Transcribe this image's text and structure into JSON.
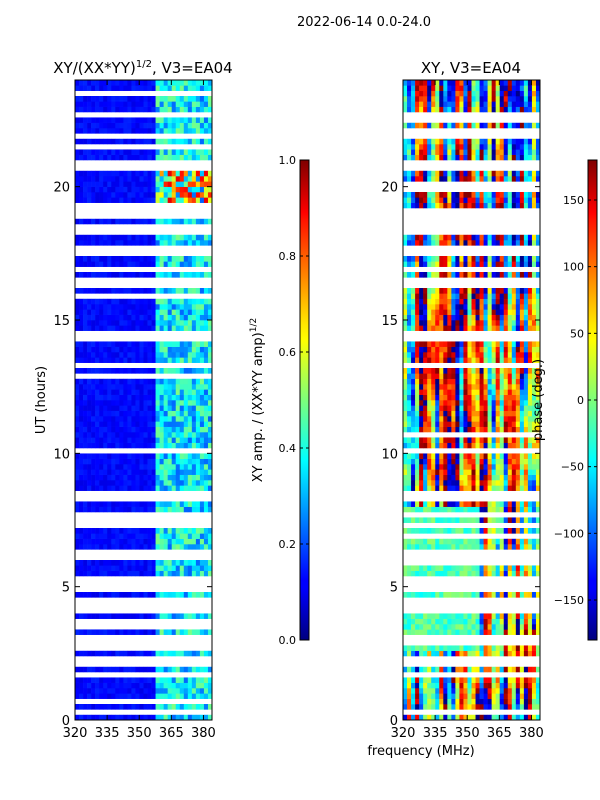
{
  "figure_title": "2022-06-14 0.0-24.0",
  "x_label_shared": "frequency (MHz)",
  "chart_data": [
    {
      "type": "heatmap",
      "title": "XY/(XX*YY)^{1/2}, V3=EA04",
      "title_main": "XY/(XX*YY)",
      "title_sup": "1/2",
      "title_tail": ", V3=EA04",
      "xlabel": "frequency (MHz)",
      "ylabel": "UT (hours)",
      "xlim": [
        320,
        384
      ],
      "ylim": [
        0,
        24
      ],
      "xticks": [
        320,
        335,
        350,
        365,
        380
      ],
      "yticks": [
        0,
        5,
        10,
        15,
        20
      ],
      "colormap": "jet",
      "colorbar": {
        "label": "XY amp. / (XX*YY amp)^{1/2}",
        "label_main": "XY amp. / (XX*YY amp)",
        "label_sup": "1/2",
        "range": [
          0.0,
          1.0
        ],
        "ticks": [
          "0.0",
          "0.2",
          "0.4",
          "0.6",
          "0.8",
          "1.0"
        ],
        "tick_values": [
          0.0,
          0.2,
          0.4,
          0.6,
          0.8,
          1.0
        ]
      },
      "flagged_gaps_hours": [
        [
          0.3,
          0.4
        ],
        [
          1.6,
          1.7
        ],
        [
          2.1,
          2.3
        ],
        [
          3.0,
          3.2
        ],
        [
          4.3,
          4.5
        ],
        [
          4.9,
          5.4
        ],
        [
          6.1,
          6.3
        ],
        [
          7.2,
          7.4
        ],
        [
          8.3,
          8.6
        ],
        [
          10.0,
          10.2
        ],
        [
          13.2,
          13.4
        ],
        [
          14.3,
          14.5
        ],
        [
          16.3,
          16.5
        ],
        [
          17.5,
          17.7
        ],
        [
          18.3,
          18.5
        ],
        [
          18.9,
          19.1
        ],
        [
          20.7,
          20.9
        ],
        [
          21.8,
          22.0
        ],
        [
          22.6,
          22.8
        ]
      ],
      "high_amp_band_mhz": [
        356,
        383
      ]
    },
    {
      "type": "heatmap",
      "title": "XY, V3=EA04",
      "xlabel": "frequency (MHz)",
      "ylabel": "",
      "xlim": [
        320,
        384
      ],
      "ylim": [
        0,
        24
      ],
      "xticks": [
        320,
        335,
        350,
        365,
        380
      ],
      "yticks": [
        0,
        5,
        10,
        15,
        20
      ],
      "colormap": "jet",
      "colorbar": {
        "label": "phase (deg.)",
        "range": [
          -180,
          180
        ],
        "ticks": [
          "150",
          "100",
          "50",
          "0",
          "−50",
          "−100",
          "−150"
        ],
        "tick_values": [
          150,
          100,
          50,
          0,
          -50,
          -100,
          -150
        ]
      },
      "flagged_gaps_hours": [
        [
          0.3,
          0.4
        ],
        [
          1.6,
          1.7
        ],
        [
          2.1,
          2.3
        ],
        [
          3.0,
          3.2
        ],
        [
          4.3,
          4.5
        ],
        [
          4.9,
          5.4
        ],
        [
          6.1,
          6.3
        ],
        [
          7.2,
          7.4
        ],
        [
          8.3,
          8.6
        ],
        [
          10.0,
          10.2
        ],
        [
          13.2,
          13.4
        ],
        [
          14.3,
          14.5
        ],
        [
          16.3,
          16.5
        ],
        [
          17.5,
          17.7
        ],
        [
          18.3,
          18.5
        ],
        [
          18.9,
          19.1
        ],
        [
          20.7,
          20.9
        ],
        [
          21.8,
          22.0
        ],
        [
          22.6,
          22.8
        ]
      ]
    }
  ]
}
